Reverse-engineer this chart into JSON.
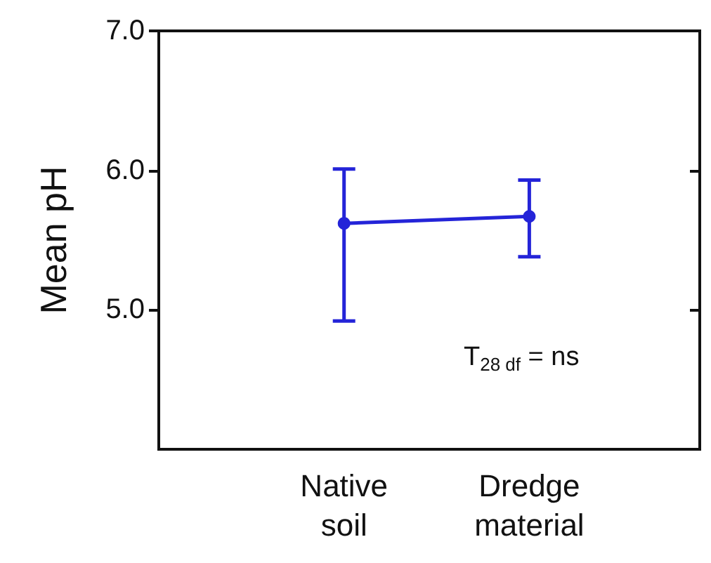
{
  "chart_data": {
    "type": "line",
    "ylabel": "Mean pH",
    "categories": [
      "Native\nsoil",
      "Dredge\nmaterial"
    ],
    "series": [
      {
        "color": "#2424d8",
        "values": [
          5.62,
          5.67
        ],
        "errors": [
          [
            4.92,
            6.01
          ],
          [
            5.38,
            5.93
          ]
        ]
      }
    ],
    "ylim": [
      4,
      7
    ],
    "yticks": [
      {
        "value": 5,
        "label": "5.0"
      },
      {
        "value": 6,
        "label": "6.0"
      },
      {
        "value": 7,
        "label": "7.0"
      }
    ],
    "marker": "circle",
    "grid": false,
    "annotations": [
      "T$_{28 df}$ = ns"
    ]
  }
}
